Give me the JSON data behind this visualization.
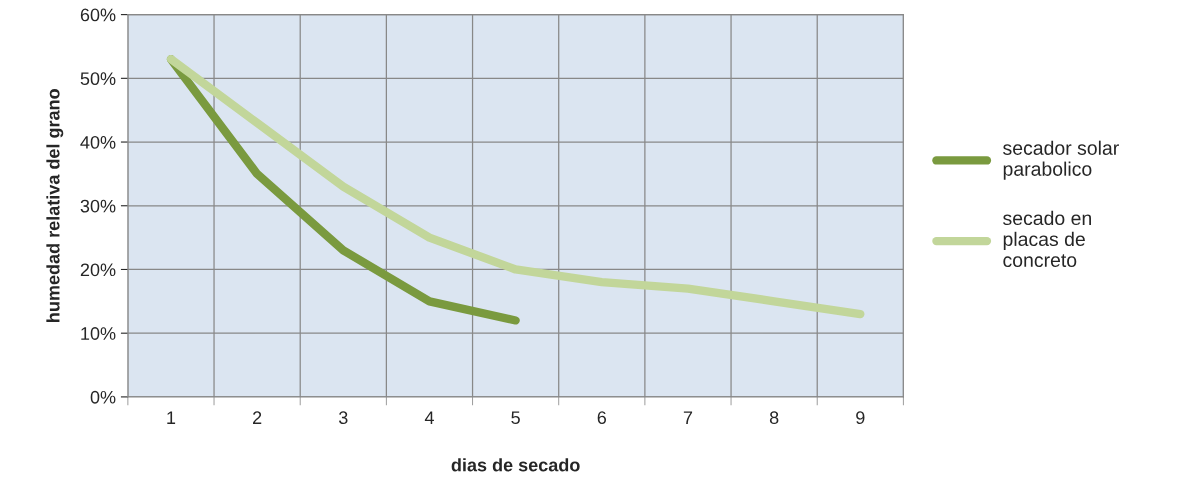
{
  "chart_data": {
    "type": "line",
    "xlabel": "dias de secado",
    "ylabel": "humedad relativa del grano",
    "categories": [
      "1",
      "2",
      "3",
      "4",
      "5",
      "6",
      "7",
      "8",
      "9"
    ],
    "series": [
      {
        "name": "secador solar parabolico",
        "color": "#7a9a3f",
        "values": [
          53,
          35,
          23,
          15,
          12,
          null,
          null,
          null,
          null
        ]
      },
      {
        "name": "secado en placas de concreto",
        "color": "#c2d69a",
        "values": [
          53,
          43,
          33,
          25,
          20,
          18,
          17,
          15,
          13
        ]
      }
    ],
    "ylim": [
      0,
      60
    ],
    "yticks": [
      {
        "value": 0,
        "label": "0%"
      },
      {
        "value": 10,
        "label": "10%"
      },
      {
        "value": 20,
        "label": "20%"
      },
      {
        "value": 30,
        "label": "30%"
      },
      {
        "value": 40,
        "label": "40%"
      },
      {
        "value": 50,
        "label": "50%"
      },
      {
        "value": 60,
        "label": "60%"
      }
    ],
    "grid": true,
    "legend": "right",
    "marker": "none",
    "line_style": "solid"
  }
}
